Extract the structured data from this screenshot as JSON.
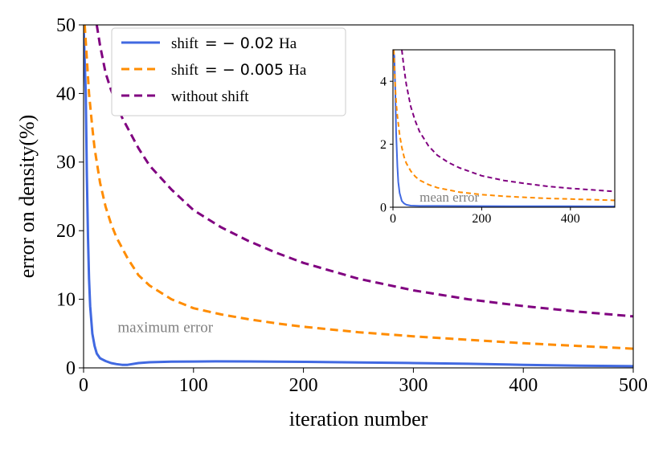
{
  "chart_data": [
    {
      "type": "line",
      "xlabel": "iteration number",
      "ylabel": "error on density(%)",
      "xlim": [
        0,
        500
      ],
      "ylim": [
        0,
        50
      ],
      "xticks": [
        0,
        100,
        200,
        300,
        400,
        500
      ],
      "yticks": [
        0,
        10,
        20,
        30,
        40,
        50
      ],
      "annotation": "maximum error",
      "legend_placement": "upper-left",
      "grid": false,
      "series": [
        {
          "name": "shift = −0.02 Ha",
          "label_prefix": "shift",
          "label_value": "= − 0.02",
          "label_unit": "Ha",
          "color": "#4169e1",
          "dash": "solid",
          "x": [
            0,
            2,
            3,
            4,
            5,
            6,
            8,
            10,
            12,
            15,
            20,
            25,
            30,
            35,
            40,
            50,
            60,
            80,
            100,
            120,
            150,
            200,
            250,
            300,
            350,
            400,
            450,
            500
          ],
          "y": [
            50,
            40,
            28,
            19,
            13,
            9,
            5,
            3.2,
            2.1,
            1.4,
            1.0,
            0.7,
            0.55,
            0.45,
            0.45,
            0.7,
            0.82,
            0.9,
            0.93,
            0.95,
            0.94,
            0.88,
            0.8,
            0.7,
            0.6,
            0.45,
            0.32,
            0.25
          ]
        },
        {
          "name": "shift = −0.005 Ha",
          "label_prefix": "shift",
          "label_value": "= − 0.005",
          "label_unit": "Ha",
          "color": "#ff8c00",
          "dash": "dashed",
          "x": [
            1,
            3,
            5,
            8,
            10,
            15,
            20,
            25,
            30,
            40,
            50,
            60,
            80,
            100,
            125,
            150,
            175,
            200,
            250,
            300,
            350,
            400,
            450,
            500
          ],
          "y": [
            50,
            45,
            40,
            35,
            32,
            27,
            23.5,
            21,
            19,
            16,
            13.5,
            12,
            10,
            8.7,
            7.8,
            7.1,
            6.5,
            6,
            5.2,
            4.6,
            4.1,
            3.6,
            3.2,
            2.8
          ]
        },
        {
          "name": "without shift",
          "label_prefix": "without shift",
          "label_value": "",
          "label_unit": "",
          "color": "#800080",
          "dash": "dashed",
          "x": [
            12,
            15,
            20,
            25,
            30,
            35,
            40,
            50,
            60,
            80,
            100,
            125,
            150,
            175,
            200,
            250,
            300,
            350,
            400,
            450,
            500
          ],
          "y": [
            50,
            47,
            43,
            40.5,
            38.5,
            36.5,
            35,
            32,
            29.5,
            26,
            23,
            20.5,
            18.5,
            16.8,
            15.3,
            13,
            11.3,
            10,
            9,
            8.2,
            7.5
          ]
        }
      ]
    },
    {
      "type": "line",
      "xlabel": "",
      "ylabel": "",
      "xlim": [
        0,
        500
      ],
      "ylim": [
        0,
        5
      ],
      "xticks": [
        0,
        200,
        400
      ],
      "yticks": [
        0,
        2,
        4
      ],
      "annotation": "mean error",
      "grid": false,
      "series": [
        {
          "name": "shift = −0.02 Ha",
          "color": "#4169e1",
          "dash": "solid",
          "x": [
            0,
            3,
            5,
            7,
            10,
            12,
            15,
            20,
            25,
            30,
            40,
            60,
            100,
            200,
            300,
            400,
            500
          ],
          "y": [
            5,
            4.8,
            3.8,
            2.4,
            1.3,
            0.8,
            0.45,
            0.2,
            0.12,
            0.08,
            0.05,
            0.04,
            0.04,
            0.035,
            0.03,
            0.03,
            0.025
          ]
        },
        {
          "name": "shift = −0.005 Ha",
          "color": "#ff8c00",
          "dash": "dashed",
          "x": [
            2,
            4,
            6,
            8,
            10,
            15,
            20,
            25,
            30,
            40,
            50,
            60,
            80,
            100,
            150,
            200,
            250,
            300,
            350,
            400,
            450,
            500
          ],
          "y": [
            5,
            4.2,
            3.6,
            3.2,
            2.9,
            2.3,
            1.9,
            1.6,
            1.4,
            1.15,
            0.98,
            0.86,
            0.72,
            0.62,
            0.48,
            0.4,
            0.35,
            0.31,
            0.28,
            0.26,
            0.24,
            0.22
          ]
        },
        {
          "name": "without shift",
          "color": "#800080",
          "dash": "dashed",
          "x": [
            20,
            25,
            30,
            40,
            50,
            60,
            80,
            100,
            125,
            150,
            200,
            250,
            300,
            350,
            400,
            450,
            500
          ],
          "y": [
            5,
            4.4,
            3.9,
            3.2,
            2.75,
            2.4,
            1.95,
            1.65,
            1.42,
            1.25,
            1.0,
            0.85,
            0.75,
            0.66,
            0.6,
            0.55,
            0.5
          ]
        }
      ]
    }
  ]
}
